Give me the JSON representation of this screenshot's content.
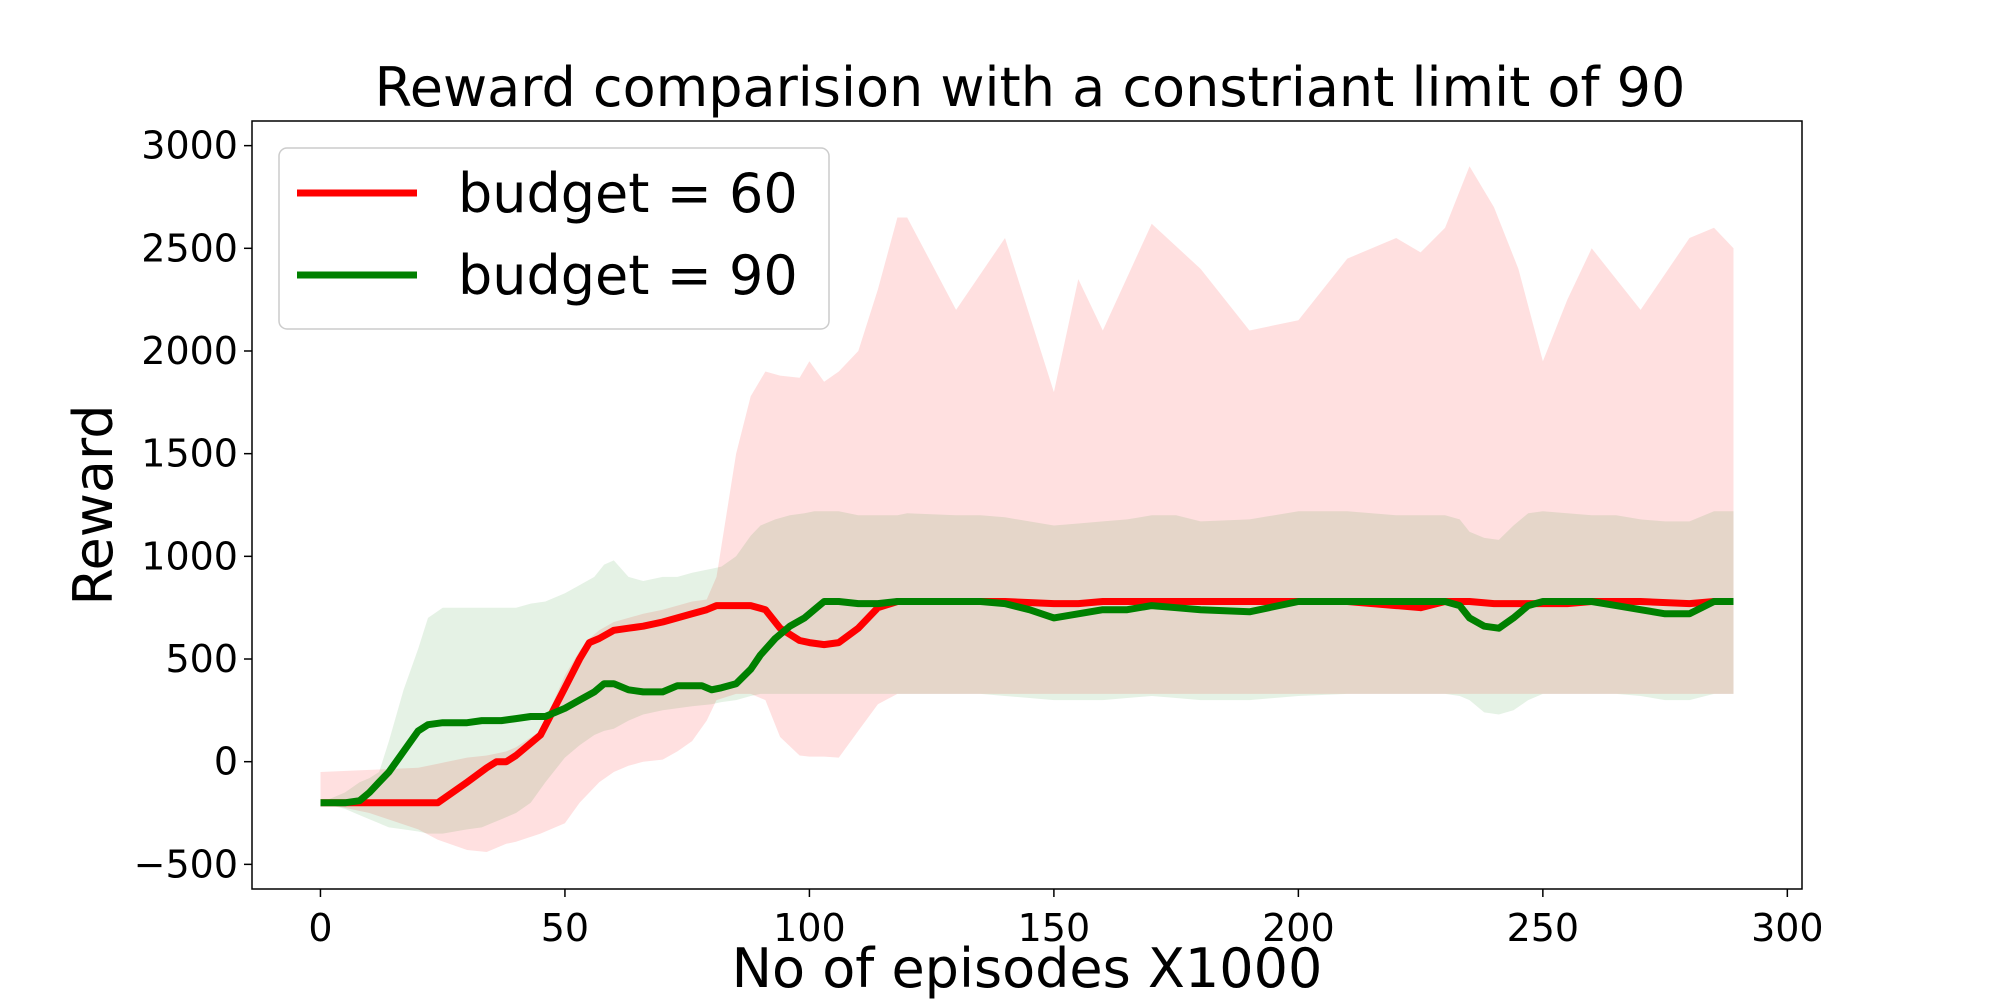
{
  "chart_data": {
    "type": "line",
    "title": "Reward comparision with a constriant limit of 90",
    "xlabel": "No of episodes X1000",
    "ylabel": "Reward",
    "xlim": [
      -14,
      303
    ],
    "ylim": [
      -620,
      3120
    ],
    "xticks": [
      0,
      50,
      100,
      150,
      200,
      250,
      300
    ],
    "yticks": [
      -500,
      0,
      500,
      1000,
      1500,
      2000,
      2500,
      3000
    ],
    "xtick_labels": [
      "0",
      "50",
      "100",
      "150",
      "200",
      "250",
      "300"
    ],
    "ytick_labels": [
      "−500",
      "0",
      "500",
      "1000",
      "1500",
      "2000",
      "2500",
      "3000"
    ],
    "grid": false,
    "legend": "top-left",
    "series": [
      {
        "name": "budget = 60",
        "color": "#ff0000",
        "fill_color": "#ff0000",
        "fill_opacity": 0.12,
        "x": [
          0,
          10,
          20,
          24,
          30,
          34,
          36,
          38,
          40,
          45,
          50,
          53,
          55,
          57,
          60,
          63,
          66,
          70,
          73,
          76,
          79,
          81,
          85,
          88,
          91,
          94,
          98,
          100,
          103,
          106,
          110,
          114,
          118,
          120,
          130,
          140,
          150,
          155,
          160,
          170,
          180,
          190,
          200,
          210,
          220,
          225,
          230,
          235,
          240,
          245,
          250,
          255,
          260,
          270,
          280,
          285,
          289
        ],
        "y": [
          -200,
          -200,
          -200,
          -200,
          -100,
          -30,
          0,
          0,
          30,
          130,
          360,
          500,
          580,
          600,
          640,
          650,
          660,
          680,
          700,
          720,
          740,
          760,
          760,
          760,
          740,
          650,
          590,
          580,
          570,
          580,
          650,
          750,
          780,
          780,
          780,
          780,
          770,
          770,
          780,
          780,
          780,
          780,
          780,
          780,
          760,
          750,
          780,
          780,
          770,
          770,
          770,
          770,
          780,
          780,
          770,
          780,
          780
        ],
        "upper": [
          -50,
          -40,
          -30,
          -10,
          20,
          30,
          40,
          50,
          70,
          150,
          420,
          540,
          600,
          640,
          680,
          700,
          720,
          740,
          760,
          780,
          790,
          900,
          1500,
          1780,
          1900,
          1880,
          1870,
          1950,
          1850,
          1900,
          2000,
          2300,
          2650,
          2650,
          2200,
          2550,
          1800,
          2350,
          2100,
          2620,
          2400,
          2100,
          2150,
          2450,
          2550,
          2480,
          2600,
          2900,
          2700,
          2400,
          1950,
          2250,
          2500,
          2200,
          2550,
          2600,
          2500
        ],
        "lower": [
          -200,
          -250,
          -330,
          -380,
          -430,
          -440,
          -420,
          -400,
          -390,
          -350,
          -300,
          -200,
          -150,
          -100,
          -50,
          -20,
          0,
          10,
          50,
          100,
          200,
          300,
          330,
          330,
          300,
          120,
          30,
          25,
          25,
          20,
          150,
          280,
          330,
          330,
          330,
          330,
          330,
          330,
          330,
          330,
          330,
          330,
          330,
          330,
          330,
          330,
          330,
          330,
          330,
          330,
          330,
          330,
          330,
          330,
          330,
          330,
          330
        ]
      },
      {
        "name": "budget = 90",
        "color": "#008000",
        "fill_color": "#008000",
        "fill_opacity": 0.1,
        "x": [
          0,
          5,
          8,
          10,
          12,
          14,
          17,
          20,
          22,
          25,
          30,
          33,
          35,
          37,
          40,
          43,
          46,
          50,
          53,
          56,
          58,
          60,
          63,
          66,
          70,
          73,
          76,
          78,
          80,
          82,
          85,
          88,
          90,
          93,
          96,
          99,
          101,
          103,
          106,
          110,
          114,
          118,
          120,
          130,
          135,
          140,
          145,
          150,
          155,
          160,
          165,
          170,
          175,
          180,
          190,
          200,
          210,
          220,
          230,
          233,
          235,
          238,
          241,
          244,
          247,
          250,
          255,
          260,
          265,
          270,
          275,
          280,
          285,
          289
        ],
        "y": [
          -200,
          -200,
          -190,
          -150,
          -100,
          -50,
          50,
          150,
          180,
          190,
          190,
          200,
          200,
          200,
          210,
          220,
          220,
          260,
          300,
          340,
          380,
          380,
          350,
          340,
          340,
          370,
          370,
          370,
          350,
          360,
          380,
          450,
          520,
          600,
          660,
          700,
          740,
          780,
          780,
          770,
          770,
          780,
          780,
          780,
          780,
          770,
          740,
          700,
          720,
          740,
          740,
          760,
          750,
          740,
          730,
          780,
          780,
          780,
          780,
          760,
          700,
          660,
          650,
          700,
          760,
          780,
          780,
          780,
          760,
          740,
          720,
          720,
          780,
          780
        ],
        "upper": [
          -200,
          -150,
          -100,
          -80,
          -50,
          100,
          350,
          550,
          700,
          750,
          750,
          750,
          750,
          750,
          750,
          770,
          780,
          820,
          860,
          900,
          960,
          980,
          900,
          880,
          900,
          900,
          920,
          930,
          940,
          950,
          1000,
          1100,
          1150,
          1180,
          1200,
          1210,
          1220,
          1220,
          1220,
          1200,
          1200,
          1200,
          1210,
          1200,
          1200,
          1190,
          1170,
          1150,
          1160,
          1170,
          1180,
          1200,
          1200,
          1170,
          1180,
          1220,
          1220,
          1200,
          1200,
          1180,
          1120,
          1090,
          1080,
          1150,
          1210,
          1220,
          1210,
          1200,
          1200,
          1180,
          1170,
          1170,
          1220,
          1220
        ],
        "lower": [
          -200,
          -230,
          -260,
          -280,
          -300,
          -320,
          -330,
          -340,
          -350,
          -350,
          -330,
          -320,
          -300,
          -280,
          -250,
          -200,
          -100,
          20,
          80,
          130,
          150,
          160,
          200,
          230,
          250,
          260,
          270,
          275,
          280,
          290,
          300,
          320,
          330,
          330,
          330,
          330,
          330,
          330,
          330,
          330,
          330,
          330,
          330,
          330,
          330,
          320,
          310,
          300,
          300,
          300,
          310,
          320,
          310,
          300,
          300,
          320,
          330,
          330,
          330,
          320,
          300,
          240,
          230,
          250,
          300,
          330,
          330,
          330,
          330,
          320,
          300,
          300,
          330,
          330
        ]
      }
    ]
  }
}
